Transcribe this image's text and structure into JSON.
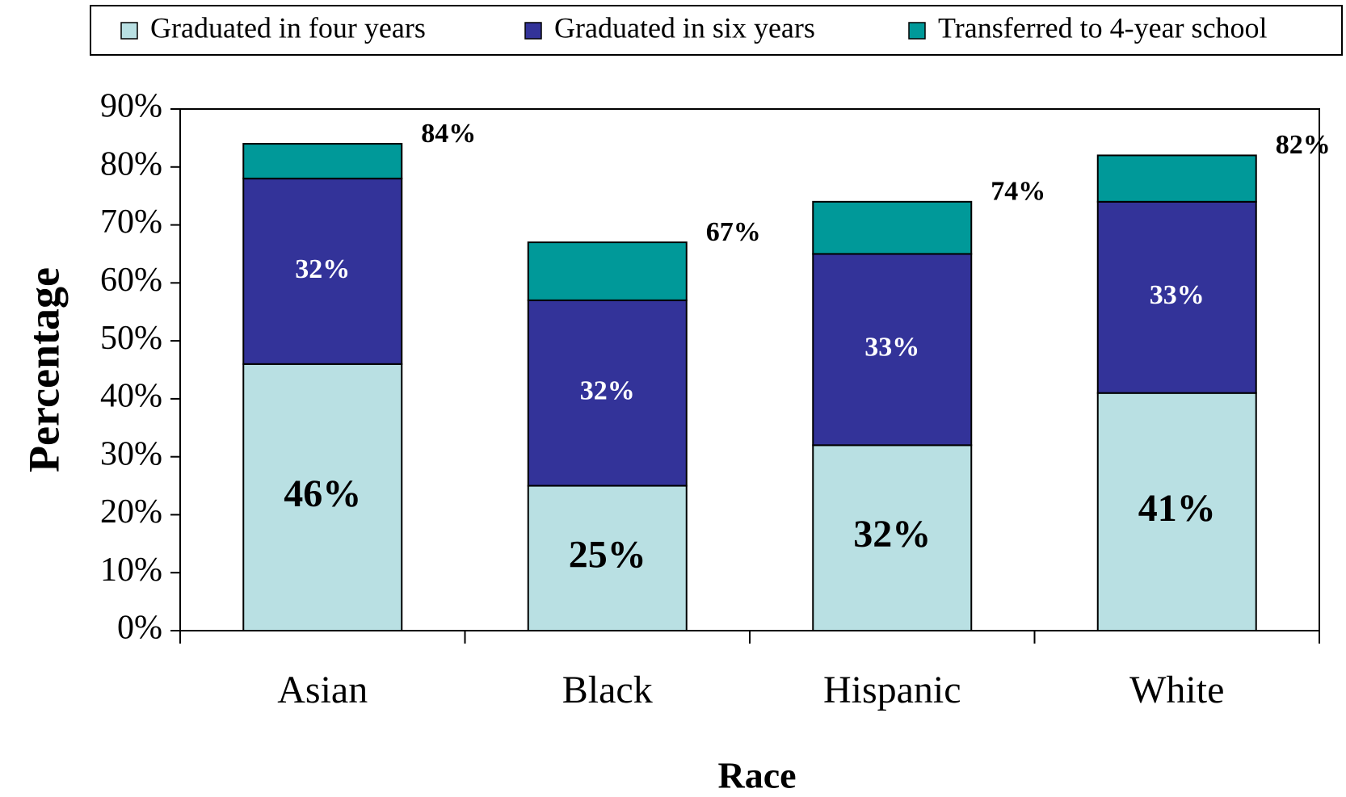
{
  "chart_data": {
    "type": "stacked_bar",
    "x_label": "Race",
    "y_label": "Percentage",
    "categories": [
      "Asian",
      "Black",
      "Hispanic",
      "White"
    ],
    "series": [
      {
        "name": "Graduated in four years",
        "color": "#b9e0e3",
        "values": [
          46,
          25,
          32,
          41
        ],
        "value_labels": [
          "46%",
          "25%",
          "32%",
          "41%"
        ]
      },
      {
        "name": "Graduated in six years",
        "color": "#333399",
        "values": [
          32,
          32,
          33,
          33
        ],
        "value_labels": [
          "32%",
          "32%",
          "33%",
          "33%"
        ]
      },
      {
        "name": "Transferred to 4-year school",
        "color": "#009999",
        "values": [
          6,
          10,
          9,
          8
        ]
      }
    ],
    "totals": [
      84,
      67,
      74,
      82
    ],
    "total_labels": [
      "84%",
      "67%",
      "74%",
      "82%"
    ],
    "ylim": [
      0,
      90
    ],
    "yticks": [
      {
        "value": 0,
        "label": "0%"
      },
      {
        "value": 10,
        "label": "10%"
      },
      {
        "value": 20,
        "label": "20%"
      },
      {
        "value": 30,
        "label": "30%"
      },
      {
        "value": 40,
        "label": "40%"
      },
      {
        "value": 50,
        "label": "50%"
      },
      {
        "value": 60,
        "label": "60%"
      },
      {
        "value": 70,
        "label": "70%"
      },
      {
        "value": 80,
        "label": "80%"
      },
      {
        "value": 90,
        "label": "90%"
      }
    ],
    "grid": false,
    "legend": "top"
  }
}
